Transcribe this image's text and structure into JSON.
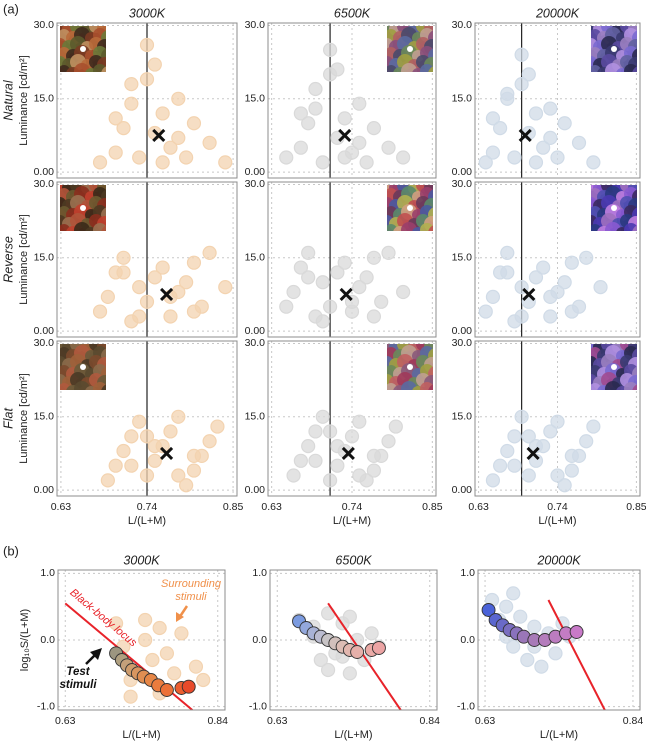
{
  "panel_labels": [
    "(a)",
    "(b)"
  ],
  "chart_data": [
    {
      "type": "scatter",
      "title": "3000K",
      "row_label": "Natural",
      "ylabel": "Luminance [cd/m²]",
      "show_xtick_labels": false,
      "xlim": [
        0.625,
        0.855
      ],
      "ylim": [
        -1.2,
        30.5
      ],
      "xticks": [
        0.63,
        0.74,
        0.85
      ],
      "yticks": [
        {
          "value": 0,
          "label": "0.00"
        },
        {
          "value": 15,
          "label": "15.0"
        },
        {
          "value": 30,
          "label": "30.0"
        }
      ],
      "x": [
        0.68,
        0.7,
        0.71,
        0.72,
        0.73,
        0.74,
        0.74,
        0.75,
        0.75,
        0.76,
        0.77,
        0.78,
        0.79,
        0.8,
        0.82,
        0.84,
        0.72,
        0.76,
        0.7,
        0.78
      ],
      "y": [
        2,
        4,
        9,
        14,
        3,
        19,
        26,
        22,
        8,
        12,
        5,
        15,
        3,
        10,
        6,
        2,
        18,
        2,
        11,
        7
      ],
      "color": "#f3d3b0",
      "mean_x": 0.755,
      "mean_y": 7.5,
      "reference_x": 0.74,
      "thumbnail_corner": "left",
      "thumbnail_palette": [
        "#7a3b22",
        "#b86a3a",
        "#5c5a2c",
        "#a8502e",
        "#3e2a1e",
        "#c09060",
        "#6d7a3a"
      ]
    },
    {
      "type": "scatter",
      "title": "6500K",
      "show_xtick_labels": false,
      "xlim": [
        0.625,
        0.855
      ],
      "ylim": [
        -1.2,
        30.5
      ],
      "xticks": [
        0.63,
        0.74,
        0.85
      ],
      "yticks": [
        {
          "value": 0,
          "label": "0.00"
        },
        {
          "value": 15,
          "label": "15.0"
        },
        {
          "value": 30,
          "label": "30.0"
        }
      ],
      "x": [
        0.65,
        0.67,
        0.68,
        0.69,
        0.7,
        0.71,
        0.71,
        0.72,
        0.72,
        0.73,
        0.74,
        0.75,
        0.76,
        0.77,
        0.79,
        0.81,
        0.69,
        0.73,
        0.67,
        0.75
      ],
      "y": [
        3,
        5,
        10,
        13,
        2,
        20,
        25,
        21,
        7,
        11,
        4,
        14,
        2,
        9,
        5,
        3,
        17,
        3,
        12,
        6
      ],
      "color": "#d9d9d9",
      "mean_x": 0.73,
      "mean_y": 7.5,
      "reference_x": 0.71,
      "thumbnail_corner": "right",
      "thumbnail_palette": [
        "#8a4f7a",
        "#6a8a5a",
        "#b06060",
        "#5a6aa0",
        "#c0a090",
        "#4a4a6a",
        "#a0a040"
      ]
    },
    {
      "type": "scatter",
      "title": "20000K",
      "show_xtick_labels": false,
      "xlim": [
        0.625,
        0.855
      ],
      "ylim": [
        -1.2,
        30.5
      ],
      "xticks": [
        0.63,
        0.74,
        0.85
      ],
      "yticks": [
        {
          "value": 0,
          "label": "0.00"
        },
        {
          "value": 15,
          "label": "15.0"
        },
        {
          "value": 30,
          "label": "30.0"
        }
      ],
      "x": [
        0.64,
        0.65,
        0.66,
        0.67,
        0.68,
        0.69,
        0.69,
        0.7,
        0.7,
        0.71,
        0.72,
        0.73,
        0.74,
        0.75,
        0.77,
        0.79,
        0.67,
        0.71,
        0.65,
        0.73
      ],
      "y": [
        2,
        4,
        9,
        15,
        3,
        18,
        24,
        20,
        8,
        12,
        5,
        13,
        3,
        10,
        6,
        2,
        16,
        2,
        11,
        7
      ],
      "color": "#d0dbe7",
      "mean_x": 0.695,
      "mean_y": 7.5,
      "reference_x": 0.69,
      "thumbnail_corner": "right",
      "thumbnail_palette": [
        "#5a4aa0",
        "#7a6ad0",
        "#3a3a70",
        "#9a80c0",
        "#2a2a50",
        "#b090e0",
        "#6060a0"
      ]
    },
    {
      "type": "scatter",
      "row_label": "Reverse",
      "ylabel": "Luminance [cd/m²]",
      "show_xtick_labels": false,
      "xlim": [
        0.625,
        0.855
      ],
      "ylim": [
        -1.2,
        30.5
      ],
      "xticks": [
        0.63,
        0.74,
        0.85
      ],
      "yticks": [
        {
          "value": 0,
          "label": "0.00"
        },
        {
          "value": 15,
          "label": "15.0"
        },
        {
          "value": 30,
          "label": "30.0"
        }
      ],
      "x": [
        0.68,
        0.69,
        0.7,
        0.71,
        0.72,
        0.73,
        0.74,
        0.75,
        0.76,
        0.77,
        0.78,
        0.79,
        0.8,
        0.81,
        0.82,
        0.84,
        0.73,
        0.77,
        0.71,
        0.8
      ],
      "y": [
        4,
        7,
        12,
        15,
        2,
        9,
        6,
        11,
        13,
        3,
        8,
        10,
        14,
        5,
        16,
        9,
        3,
        7,
        12,
        4
      ],
      "color": "#f3d3b0",
      "mean_x": 0.765,
      "mean_y": 7.5,
      "reference_x": 0.74,
      "thumbnail_corner": "left",
      "thumbnail_palette": [
        "#8a2f1e",
        "#b0543a",
        "#4c3a22",
        "#c0402e",
        "#6a5a30",
        "#9a7050",
        "#3a2a1a"
      ]
    },
    {
      "type": "scatter",
      "show_xtick_labels": false,
      "xlim": [
        0.625,
        0.855
      ],
      "ylim": [
        -1.2,
        30.5
      ],
      "xticks": [
        0.63,
        0.74,
        0.85
      ],
      "yticks": [
        {
          "value": 0,
          "label": "0.00"
        },
        {
          "value": 15,
          "label": "15.0"
        },
        {
          "value": 30,
          "label": "30.0"
        }
      ],
      "x": [
        0.65,
        0.66,
        0.67,
        0.68,
        0.69,
        0.7,
        0.71,
        0.72,
        0.73,
        0.74,
        0.75,
        0.76,
        0.77,
        0.78,
        0.79,
        0.81,
        0.7,
        0.74,
        0.68,
        0.77
      ],
      "y": [
        5,
        8,
        13,
        16,
        3,
        10,
        5,
        12,
        14,
        4,
        9,
        11,
        15,
        6,
        16,
        8,
        2,
        6,
        11,
        3
      ],
      "color": "#d9d9d9",
      "mean_x": 0.732,
      "mean_y": 7.5,
      "reference_x": 0.71,
      "thumbnail_corner": "right",
      "thumbnail_palette": [
        "#9a3f6a",
        "#5a8a6a",
        "#c05050",
        "#4a5aa0",
        "#d0a080",
        "#6a3a5a",
        "#b0b050"
      ]
    },
    {
      "type": "scatter",
      "show_xtick_labels": false,
      "xlim": [
        0.625,
        0.855
      ],
      "ylim": [
        -1.2,
        30.5
      ],
      "xticks": [
        0.63,
        0.74,
        0.85
      ],
      "yticks": [
        {
          "value": 0,
          "label": "0.00"
        },
        {
          "value": 15,
          "label": "15.0"
        },
        {
          "value": 30,
          "label": "30.0"
        }
      ],
      "x": [
        0.64,
        0.65,
        0.66,
        0.67,
        0.68,
        0.69,
        0.7,
        0.71,
        0.72,
        0.73,
        0.74,
        0.75,
        0.76,
        0.77,
        0.78,
        0.8,
        0.69,
        0.73,
        0.67,
        0.76
      ],
      "y": [
        4,
        7,
        12,
        16,
        2,
        9,
        6,
        11,
        13,
        3,
        8,
        10,
        14,
        5,
        15,
        9,
        3,
        7,
        12,
        4
      ],
      "color": "#d0dbe7",
      "mean_x": 0.7,
      "mean_y": 7.5,
      "reference_x": 0.69,
      "thumbnail_corner": "right",
      "thumbnail_palette": [
        "#4a3ab0",
        "#8a5ad0",
        "#2a3a80",
        "#a070c0",
        "#3a2a60",
        "#c080e0",
        "#5050b0"
      ]
    },
    {
      "type": "scatter",
      "row_label": "Flat",
      "ylabel": "Luminance [cd/m²]",
      "xlabel": "L/(L+M)",
      "xlim": [
        0.625,
        0.855
      ],
      "ylim": [
        -1.2,
        30.5
      ],
      "xticks": [
        0.63,
        0.74,
        0.85
      ],
      "yticks": [
        {
          "value": 0,
          "label": "0.00"
        },
        {
          "value": 15,
          "label": "15.0"
        },
        {
          "value": 30,
          "label": "30.0"
        }
      ],
      "x": [
        0.69,
        0.7,
        0.71,
        0.72,
        0.73,
        0.74,
        0.75,
        0.76,
        0.77,
        0.78,
        0.79,
        0.8,
        0.81,
        0.82,
        0.83,
        0.72,
        0.75,
        0.78,
        0.74,
        0.8
      ],
      "y": [
        2,
        5,
        8,
        11,
        14,
        3,
        6,
        9,
        12,
        15,
        1,
        4,
        7,
        10,
        13,
        5,
        9,
        3,
        11,
        7
      ],
      "color": "#f3d3b0",
      "mean_x": 0.765,
      "mean_y": 7.5,
      "reference_x": 0.74,
      "thumbnail_corner": "left",
      "thumbnail_palette": [
        "#7a4a2e",
        "#a0603a",
        "#5a4a30",
        "#b05a3e",
        "#4a3a26",
        "#8a6a4a",
        "#6a5a3a"
      ]
    },
    {
      "type": "scatter",
      "show_xtick_labels": true,
      "xlabel": "L/(L+M)",
      "xlim": [
        0.625,
        0.855
      ],
      "ylim": [
        -1.2,
        30.5
      ],
      "xticks": [
        0.63,
        0.74,
        0.85
      ],
      "yticks": [
        {
          "value": 0,
          "label": "0.00"
        },
        {
          "value": 15,
          "label": "15.0"
        },
        {
          "value": 30,
          "label": "30.0"
        }
      ],
      "x": [
        0.66,
        0.67,
        0.68,
        0.69,
        0.7,
        0.71,
        0.72,
        0.73,
        0.74,
        0.75,
        0.76,
        0.77,
        0.78,
        0.79,
        0.8,
        0.69,
        0.72,
        0.75,
        0.71,
        0.77
      ],
      "y": [
        3,
        6,
        9,
        12,
        15,
        2,
        5,
        8,
        11,
        14,
        2,
        4,
        7,
        10,
        13,
        6,
        9,
        3,
        12,
        7
      ],
      "color": "#d9d9d9",
      "mean_x": 0.735,
      "mean_y": 7.5,
      "reference_x": 0.71,
      "thumbnail_corner": "right",
      "thumbnail_palette": [
        "#8a5a7a",
        "#6a8a5a",
        "#c06060",
        "#5a6aa0",
        "#c0a090",
        "#a03a5a",
        "#a0a040"
      ]
    },
    {
      "type": "scatter",
      "show_xtick_labels": true,
      "xlabel": "L/(L+M)",
      "xlim": [
        0.625,
        0.855
      ],
      "ylim": [
        -1.2,
        30.5
      ],
      "xticks": [
        0.63,
        0.74,
        0.85
      ],
      "yticks": [
        {
          "value": 0,
          "label": "0.00"
        },
        {
          "value": 15,
          "label": "15.0"
        },
        {
          "value": 30,
          "label": "30.0"
        }
      ],
      "x": [
        0.65,
        0.66,
        0.67,
        0.68,
        0.69,
        0.7,
        0.71,
        0.72,
        0.73,
        0.74,
        0.75,
        0.76,
        0.77,
        0.78,
        0.79,
        0.68,
        0.71,
        0.74,
        0.7,
        0.76
      ],
      "y": [
        2,
        5,
        8,
        11,
        15,
        3,
        6,
        9,
        12,
        14,
        1,
        4,
        7,
        10,
        13,
        5,
        9,
        3,
        11,
        7
      ],
      "color": "#d0dbe7",
      "mean_x": 0.706,
      "mean_y": 7.5,
      "reference_x": 0.69,
      "thumbnail_corner": "right",
      "thumbnail_palette": [
        "#5a4aa0",
        "#7a6ad0",
        "#3a3a70",
        "#9a80c0",
        "#2a2a50",
        "#b090e0",
        "#a04a90"
      ]
    },
    {
      "type": "scatter",
      "title": "3000K",
      "ylabel": "log₁₀S/(L+M)",
      "xlabel": "L/(L+M)",
      "xlim": [
        0.62,
        0.85
      ],
      "ylim": [
        -1.05,
        1.05
      ],
      "xticks": [
        0.63,
        0.84
      ],
      "yticks": [
        {
          "value": -1,
          "label": "-1.0"
        },
        {
          "value": 0,
          "label": "0.0"
        },
        {
          "value": 1,
          "label": "1.0"
        }
      ],
      "x": [
        0.7,
        0.71,
        0.72,
        0.74,
        0.75,
        0.76,
        0.78,
        0.79,
        0.8,
        0.82,
        0.74,
        0.77,
        0.72,
        0.81,
        0.76
      ],
      "y": [
        0.25,
        -0.1,
        -0.6,
        0.0,
        -0.3,
        -0.8,
        -0.5,
        0.1,
        -0.7,
        -0.6,
        0.3,
        -0.2,
        -0.85,
        -0.4,
        0.18
      ],
      "color": "#f3d3b0",
      "test_x": [
        0.7,
        0.708,
        0.715,
        0.722,
        0.73,
        0.738,
        0.748,
        0.758,
        0.77,
        0.79,
        0.8
      ],
      "test_y": [
        -0.2,
        -0.3,
        -0.38,
        -0.45,
        -0.5,
        -0.55,
        -0.6,
        -0.68,
        -0.75,
        -0.72,
        -0.7
      ],
      "test_colors": [
        "#9c9680",
        "#b0a080",
        "#c4a07a",
        "#cf9c6c",
        "#d99660",
        "#e08e52",
        "#e68646",
        "#ea7c3e",
        "#ec7036",
        "#ec5e30",
        "#e84a2a"
      ],
      "locus_x": [
        0.63,
        0.805
      ],
      "locus_y": [
        0.55,
        -1.05
      ],
      "locus_color": "#e8232a",
      "locus_label": "Black-body locus",
      "surround_label": [
        "Surrounding",
        "stimuli"
      ],
      "test_label": [
        "Test",
        "stimuli"
      ]
    },
    {
      "type": "scatter",
      "title": "6500K",
      "xlabel": "L/(L+M)",
      "xlim": [
        0.62,
        0.85
      ],
      "ylim": [
        -1.05,
        1.05
      ],
      "xticks": [
        0.63,
        0.84
      ],
      "yticks": [
        {
          "value": -1,
          "label": "-1.0"
        },
        {
          "value": 0,
          "label": "0.0"
        },
        {
          "value": 1,
          "label": "1.0"
        }
      ],
      "x": [
        0.66,
        0.68,
        0.69,
        0.7,
        0.71,
        0.72,
        0.73,
        0.74,
        0.75,
        0.76,
        0.7,
        0.73,
        0.68,
        0.77,
        0.72
      ],
      "y": [
        0.3,
        0.05,
        -0.3,
        0.4,
        -0.2,
        0.25,
        -0.5,
        0.0,
        -0.3,
        0.1,
        -0.45,
        0.35,
        0.2,
        -0.1,
        -0.25
      ],
      "color": "#d9d9d9",
      "test_x": [
        0.66,
        0.67,
        0.68,
        0.69,
        0.7,
        0.71,
        0.72,
        0.73,
        0.74,
        0.76,
        0.77
      ],
      "test_y": [
        0.28,
        0.18,
        0.1,
        0.05,
        0.0,
        -0.05,
        -0.1,
        -0.15,
        -0.18,
        -0.15,
        -0.12
      ],
      "test_colors": [
        "#7b9be0",
        "#93a8dc",
        "#a8b2d6",
        "#bbbcd0",
        "#c8c4c6",
        "#d2c0bc",
        "#dcbcb4",
        "#e2b6ae",
        "#e6b0aa",
        "#eaaaa6",
        "#eca4a4"
      ],
      "locus_x": [
        0.7,
        0.8
      ],
      "locus_y": [
        0.55,
        -1.05
      ],
      "locus_color": "#e8232a"
    },
    {
      "type": "scatter",
      "title": "20000K",
      "xlabel": "L/(L+M)",
      "xlim": [
        0.62,
        0.85
      ],
      "ylim": [
        -1.05,
        1.05
      ],
      "xticks": [
        0.63,
        0.84
      ],
      "yticks": [
        {
          "value": -1,
          "label": "-1.0"
        },
        {
          "value": 0,
          "label": "0.0"
        },
        {
          "value": 1,
          "label": "1.0"
        }
      ],
      "x": [
        0.64,
        0.65,
        0.66,
        0.67,
        0.68,
        0.69,
        0.7,
        0.71,
        0.72,
        0.73,
        0.75,
        0.67,
        0.7,
        0.74,
        0.66
      ],
      "y": [
        0.6,
        0.3,
        0.5,
        -0.1,
        0.35,
        -0.3,
        0.2,
        -0.4,
        0.1,
        -0.2,
        0.05,
        0.7,
        -0.1,
        0.25,
        0.05
      ],
      "color": "#d0dbe7",
      "test_x": [
        0.635,
        0.645,
        0.655,
        0.665,
        0.675,
        0.685,
        0.7,
        0.715,
        0.73,
        0.745,
        0.76
      ],
      "test_y": [
        0.45,
        0.3,
        0.22,
        0.15,
        0.1,
        0.05,
        0.0,
        0.0,
        0.05,
        0.1,
        0.12
      ],
      "test_colors": [
        "#4a62d8",
        "#5a66d0",
        "#6a6ac8",
        "#7a6ec0",
        "#8a72bc",
        "#9a76b8",
        "#a87ab8",
        "#b47cbc",
        "#bc7cc0",
        "#c47cc4",
        "#c87ac8"
      ],
      "locus_x": [
        0.72,
        0.8
      ],
      "locus_y": [
        0.6,
        -1.05
      ],
      "locus_color": "#e8232a"
    }
  ]
}
